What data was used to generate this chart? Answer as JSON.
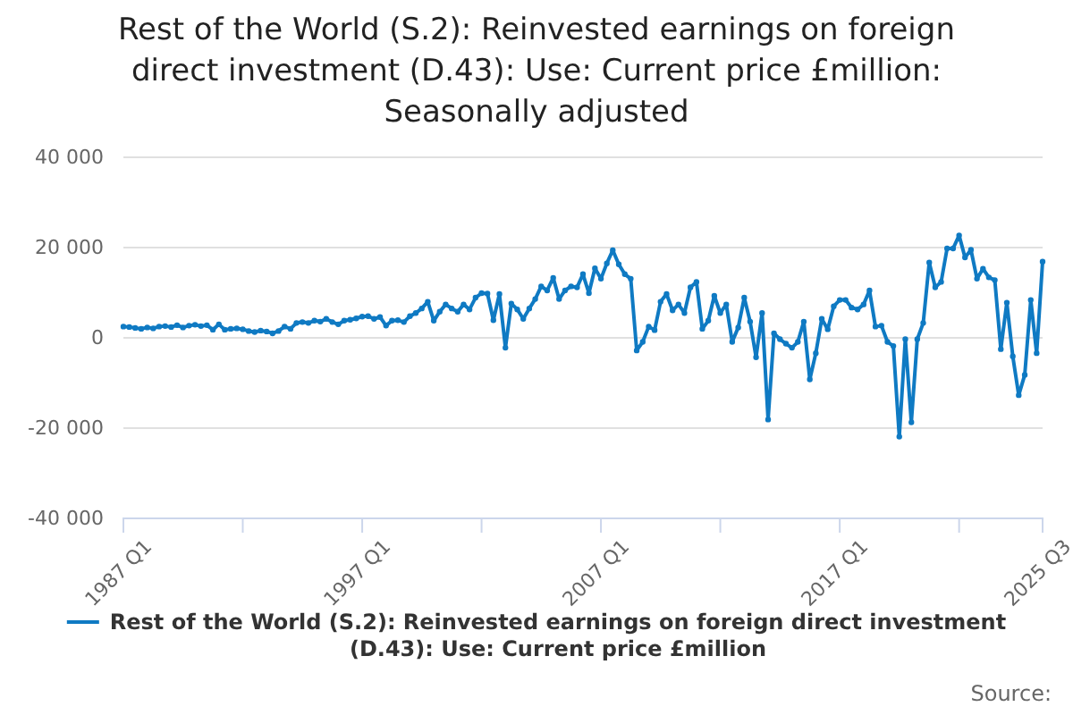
{
  "chart_data": {
    "type": "line",
    "title": "Rest of the World (S.2): Reinvested earnings on foreign direct investment (D.43): Use: Current price £million: Seasonally adjusted",
    "annotations": [
      "Source:"
    ],
    "x": [
      "1987-01",
      "1987-04",
      "1987-07",
      "1987-10",
      "1988-01",
      "1988-04",
      "1988-07",
      "1988-10",
      "1989-01",
      "1989-04",
      "1989-07",
      "1989-10",
      "1990-01",
      "1990-04",
      "1990-07",
      "1990-10",
      "1991-01",
      "1991-04",
      "1991-07",
      "1991-10",
      "1992-01",
      "1992-04",
      "1992-07",
      "1992-10",
      "1993-01",
      "1993-04",
      "1993-07",
      "1993-10",
      "1994-01",
      "1994-04",
      "1994-07",
      "1994-10",
      "1995-01",
      "1995-04",
      "1995-07",
      "1995-10",
      "1996-01",
      "1996-04",
      "1996-07",
      "1996-10",
      "1997-01",
      "1997-04",
      "1997-07",
      "1997-10",
      "1998-01",
      "1998-04",
      "1998-07",
      "1998-10",
      "1999-01",
      "1999-04",
      "1999-07",
      "1999-10",
      "2000-01",
      "2000-04",
      "2000-07",
      "2000-10",
      "2001-01",
      "2001-04",
      "2001-07",
      "2001-10",
      "2002-01",
      "2002-04",
      "2002-07",
      "2002-10",
      "2003-01",
      "2003-04",
      "2003-07",
      "2003-10",
      "2004-01",
      "2004-04",
      "2004-07",
      "2004-10",
      "2005-01",
      "2005-04",
      "2005-07",
      "2005-10",
      "2006-01",
      "2006-04",
      "2006-07",
      "2006-10",
      "2007-01",
      "2007-04",
      "2007-07",
      "2007-10",
      "2008-01",
      "2008-04",
      "2008-07",
      "2008-10",
      "2009-01",
      "2009-04",
      "2009-07",
      "2009-10",
      "2010-01",
      "2010-04",
      "2010-07",
      "2010-10",
      "2011-01",
      "2011-04",
      "2011-07",
      "2011-10",
      "2012-01",
      "2012-04",
      "2012-07",
      "2012-10",
      "2013-01",
      "2013-04",
      "2013-07",
      "2013-10",
      "2014-01",
      "2014-04",
      "2014-07",
      "2014-10",
      "2015-01",
      "2015-04",
      "2015-07",
      "2015-10",
      "2016-01",
      "2016-04",
      "2016-07",
      "2016-10",
      "2017-01",
      "2017-04",
      "2017-07",
      "2017-10",
      "2018-01",
      "2018-04",
      "2018-07",
      "2018-10",
      "2019-01",
      "2019-04",
      "2019-07",
      "2019-10",
      "2020-01",
      "2020-04",
      "2020-07",
      "2020-10",
      "2021-01",
      "2021-04",
      "2021-07",
      "2021-10",
      "2022-01",
      "2022-04",
      "2022-07",
      "2022-10",
      "2023-01",
      "2023-04",
      "2023-07",
      "2023-10",
      "2024-01",
      "2024-04",
      "2024-07",
      "2024-10",
      "2025-01",
      "2025-04",
      "2025-07"
    ],
    "series": [
      {
        "name": "Rest of the World (S.2): Reinvested earnings on foreign direct investment (D.43): Use: Current price £million",
        "color": "#0f7ac3",
        "values": [
          2500,
          2400,
          2200,
          2000,
          2300,
          2100,
          2500,
          2600,
          2400,
          2800,
          2300,
          2700,
          2900,
          2600,
          2800,
          1800,
          3000,
          1800,
          2000,
          2100,
          1900,
          1500,
          1300,
          1600,
          1400,
          1000,
          1500,
          2500,
          2000,
          3300,
          3500,
          3300,
          3800,
          3600,
          4200,
          3500,
          3000,
          3800,
          4000,
          4300,
          4700,
          4800,
          4200,
          4600,
          2700,
          3800,
          3900,
          3500,
          4800,
          5500,
          6500,
          8000,
          3800,
          5800,
          7400,
          6500,
          5800,
          7400,
          6300,
          8900,
          9900,
          9800,
          3900,
          9700,
          -2200,
          7600,
          6300,
          4200,
          6500,
          8600,
          11400,
          10500,
          13300,
          8600,
          10500,
          11400,
          11200,
          14100,
          9900,
          15400,
          13100,
          16500,
          19400,
          16300,
          14100,
          13100,
          -2800,
          -900,
          2500,
          1700,
          8000,
          9700,
          6100,
          7400,
          5500,
          11200,
          12400,
          2000,
          3800,
          9300,
          5500,
          7400,
          -900,
          2300,
          8900,
          3600,
          -4300,
          5500,
          -18100,
          1000,
          -300,
          -1300,
          -2200,
          -900,
          3600,
          -9200,
          -3400,
          4200,
          1900,
          7000,
          8400,
          8400,
          6700,
          6300,
          7400,
          10500,
          2500,
          2700,
          -900,
          -1800,
          -21900,
          -300,
          -18700,
          -300,
          3300,
          16700,
          11200,
          12400,
          19800,
          19800,
          22700,
          17800,
          19500,
          13100,
          15300,
          13400,
          12800,
          -2500,
          7800,
          -4100,
          -12700,
          -8200,
          8400,
          -3400,
          16900
        ]
      }
    ],
    "xlim": [
      "1987-01",
      "2025-07"
    ],
    "xticks": [
      {
        "value": "1987-01",
        "label": "1987 Q1"
      },
      {
        "value": "1992-01",
        "label": null
      },
      {
        "value": "1997-01",
        "label": "1997 Q1"
      },
      {
        "value": "2002-01",
        "label": null
      },
      {
        "value": "2007-01",
        "label": "2007 Q1"
      },
      {
        "value": "2012-01",
        "label": null
      },
      {
        "value": "2017-01",
        "label": "2017 Q1"
      },
      {
        "value": "2022-01",
        "label": null
      },
      {
        "value": "2025-07",
        "label": "2025 Q3"
      }
    ],
    "ylim": [
      -40000,
      40000
    ],
    "yticks": [
      {
        "value": -40000,
        "label": "-40 000"
      },
      {
        "value": -20000,
        "label": "-20 000"
      },
      0,
      {
        "value": 20000,
        "label": "20 000"
      },
      {
        "value": 40000,
        "label": "40 000"
      }
    ],
    "grid": "y",
    "marker": "circle",
    "line_style": "solid",
    "legend": "bottom"
  }
}
